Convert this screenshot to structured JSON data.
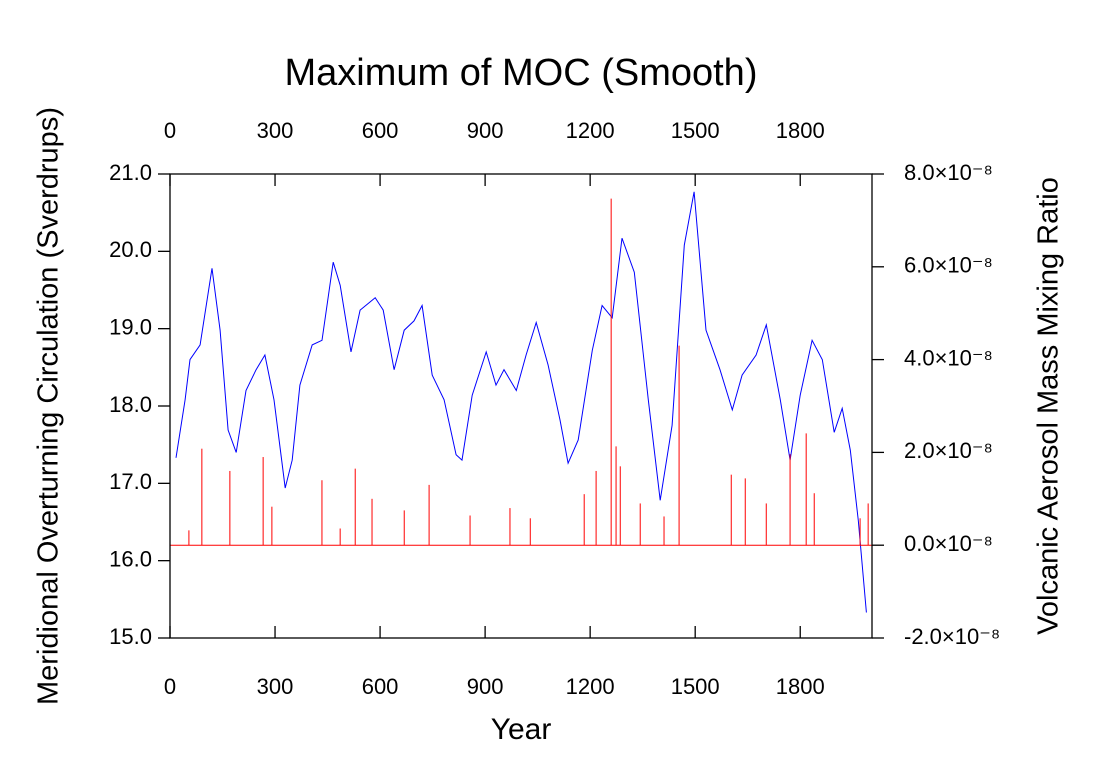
{
  "chart_data": {
    "type": "line",
    "title": "Maximum of MOC (Smooth)",
    "xlabel": "Year",
    "ylabel": "Meridional Overturning Circulation (Sverdrups)",
    "y2label": "Volcanic Aerosol Mass Mixing Ratio",
    "xlim": [
      0,
      2005
    ],
    "xticks": [
      0,
      300,
      600,
      900,
      1200,
      1500,
      1800
    ],
    "ylim": [
      15,
      21
    ],
    "yticks": [
      {
        "value": 15,
        "label": "15.0"
      },
      {
        "value": 16,
        "label": "16.0"
      },
      {
        "value": 17,
        "label": "17.0"
      },
      {
        "value": 18,
        "label": "18.0"
      },
      {
        "value": 19,
        "label": "19.0"
      },
      {
        "value": 20,
        "label": "20.0"
      },
      {
        "value": 21,
        "label": "21.0"
      }
    ],
    "y2lim": [
      -2e-08,
      8e-08
    ],
    "y2ticks": [
      {
        "value": -2e-08,
        "label": "-2.0×10⁻⁸"
      },
      {
        "value": 0,
        "label": "0.0×10⁻⁸"
      },
      {
        "value": 2e-08,
        "label": "2.0×10⁻⁸"
      },
      {
        "value": 4e-08,
        "label": "4.0×10⁻⁸"
      },
      {
        "value": 6e-08,
        "label": "6.0×10⁻⁸"
      },
      {
        "value": 8e-08,
        "label": "8.0×10⁻⁸"
      }
    ],
    "series": [
      {
        "type": "line",
        "color": "#0000ff",
        "x": [
          17,
          43,
          57,
          86,
          120,
          143,
          166,
          189,
          217,
          246,
          271,
          297,
          329,
          349,
          371,
          406,
          434,
          466,
          486,
          517,
          543,
          586,
          609,
          640,
          669,
          697,
          720,
          749,
          783,
          817,
          834,
          863,
          903,
          931,
          954,
          989,
          1017,
          1046,
          1080,
          1114,
          1137,
          1166,
          1206,
          1234,
          1263,
          1291,
          1326,
          1366,
          1400,
          1434,
          1469,
          1497,
          1531,
          1571,
          1606,
          1634,
          1674,
          1703,
          1743,
          1771,
          1800,
          1834,
          1863,
          1897,
          1920,
          1943,
          1966,
          1989
        ],
        "values": [
          17.33,
          18.08,
          18.6,
          18.79,
          19.78,
          18.98,
          17.69,
          17.4,
          18.2,
          18.47,
          18.66,
          18.08,
          16.94,
          17.3,
          18.27,
          18.79,
          18.85,
          19.86,
          19.56,
          18.7,
          19.24,
          19.4,
          19.24,
          18.47,
          18.98,
          19.1,
          19.3,
          18.4,
          18.08,
          17.37,
          17.3,
          18.14,
          18.7,
          18.27,
          18.47,
          18.2,
          18.66,
          19.08,
          18.53,
          17.82,
          17.26,
          17.56,
          18.72,
          19.3,
          19.14,
          20.17,
          19.73,
          18.08,
          16.78,
          17.75,
          20.08,
          20.77,
          18.98,
          18.47,
          17.95,
          18.4,
          18.66,
          19.05,
          18.08,
          17.3,
          18.14,
          18.85,
          18.6,
          17.66,
          17.97,
          17.43,
          16.52,
          15.33
        ]
      },
      {
        "type": "spike",
        "axis": "y2",
        "color": "#ff0000",
        "x": [
          54,
          91,
          171,
          266,
          291,
          434,
          486,
          529,
          577,
          669,
          740,
          857,
          971,
          1029,
          1183,
          1217,
          1260,
          1274,
          1286,
          1343,
          1411,
          1454,
          1603,
          1643,
          1703,
          1771,
          1817,
          1840,
          1971,
          1994
        ],
        "values": [
          3.2e-09,
          2.08e-08,
          1.6e-08,
          1.9e-08,
          8.3e-09,
          1.4e-08,
          3.6e-09,
          1.65e-08,
          1e-08,
          7.5e-09,
          1.3e-08,
          6.4e-09,
          8e-09,
          5.8e-09,
          1.1e-08,
          1.6e-08,
          7.47e-08,
          2.13e-08,
          1.7e-08,
          9e-09,
          6.2e-09,
          4.3e-08,
          1.52e-08,
          1.44e-08,
          9e-09,
          1.96e-08,
          2.41e-08,
          1.12e-08,
          5.8e-09,
          9e-09
        ]
      }
    ]
  }
}
